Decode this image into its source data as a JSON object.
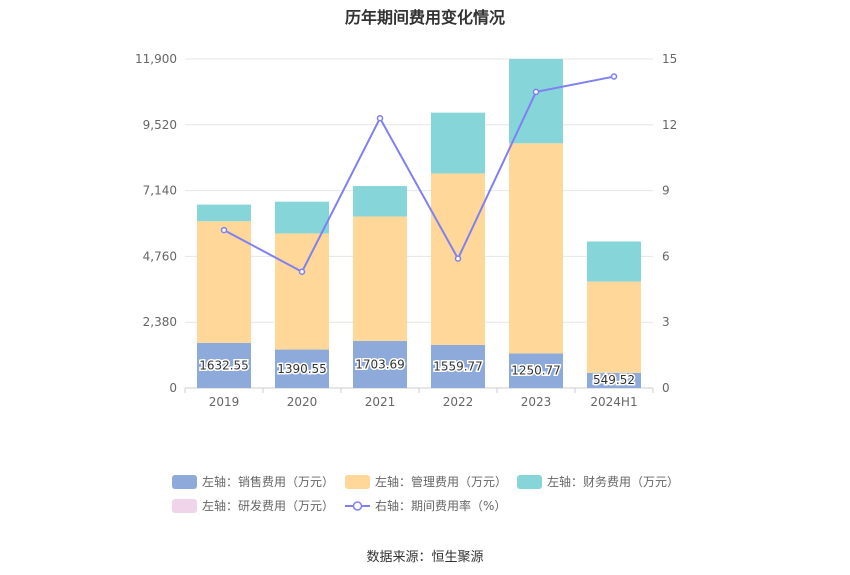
{
  "chart_data": {
    "title": "历年期间费用变化情况",
    "type": "bar",
    "stacked": true,
    "categories": [
      "2019",
      "2020",
      "2021",
      "2022",
      "2023",
      "2024H1"
    ],
    "left_axis": {
      "ylim": [
        0,
        11900
      ],
      "ticks": [
        "0",
        "2,380",
        "4,760",
        "7,140",
        "9,520",
        "11,900"
      ]
    },
    "right_axis": {
      "ylim": [
        0,
        15
      ],
      "ticks": [
        "0",
        "3",
        "6",
        "9",
        "12",
        "15"
      ]
    },
    "series": [
      {
        "name": "左轴：销售费用（万元）",
        "color": "#8eaadb",
        "values": [
          1632.55,
          1390.55,
          1703.69,
          1559.77,
          1250.77,
          549.52
        ],
        "data_labels": [
          "1632.55",
          "1390.55",
          "1703.69",
          "1559.77",
          "1250.77",
          "549.52"
        ]
      },
      {
        "name": "左轴：管理费用（万元）",
        "color": "#ffd899",
        "values": [
          4400,
          4200,
          4500,
          6200,
          7600,
          3300
        ]
      },
      {
        "name": "左轴：财务费用（万元）",
        "color": "#86d5d8",
        "values": [
          600,
          1150,
          1100,
          2200,
          3050,
          1450
        ]
      },
      {
        "name": "左轴：研发费用（万元）",
        "color": "#f0d4ea",
        "values": [
          0,
          0,
          0,
          0,
          0,
          0
        ]
      },
      {
        "name": "右轴：期间费用率（%）",
        "color": "#8080f0",
        "type": "line",
        "axis": "right",
        "values": [
          7.2,
          5.3,
          12.3,
          5.9,
          13.5,
          14.2
        ]
      }
    ],
    "legend_position": "bottom",
    "grid": true
  },
  "source": "数据来源：恒生聚源"
}
